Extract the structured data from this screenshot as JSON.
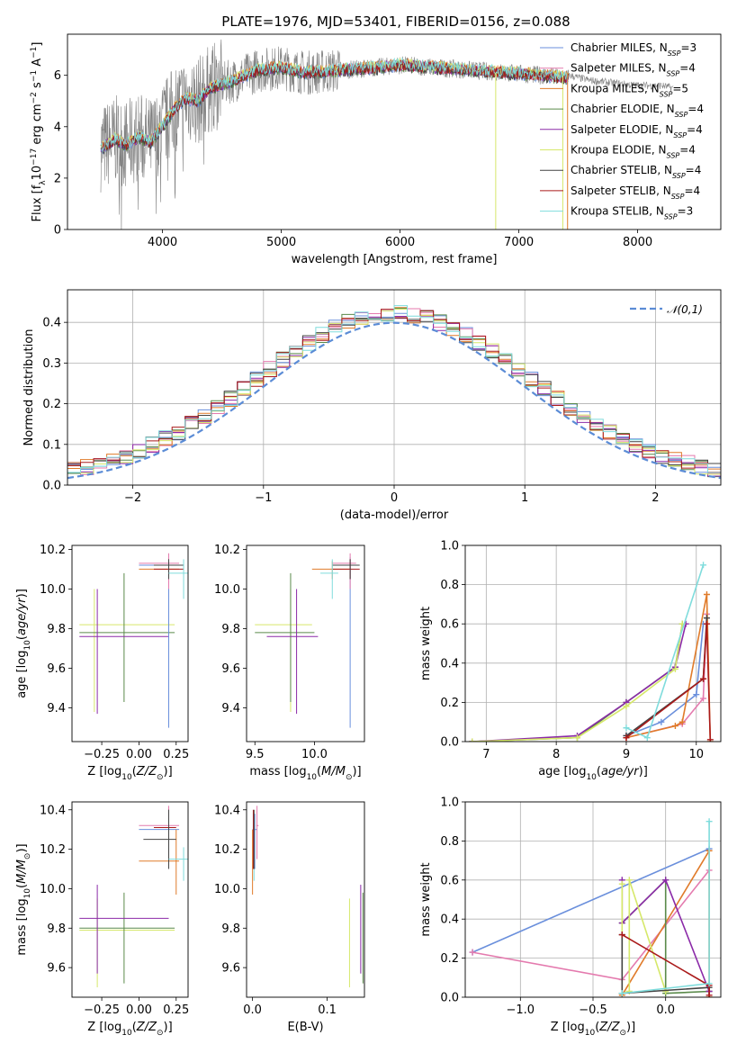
{
  "figure": {
    "title": "PLATE=1976, MJD=53401, FIBERID=0156, z=0.088"
  },
  "colors": {
    "Chabrier MILES": "#6a8fdc",
    "Salpeter MILES": "#e47aae",
    "Kroupa MILES": "#e07b2a",
    "Chabrier ELODIE": "#5a8a4a",
    "Salpeter ELODIE": "#8b2aa8",
    "Kroupa ELODIE": "#d6e86a",
    "Chabrier STELIB": "#444444",
    "Salpeter STELIB": "#aa1a1a",
    "Kroupa STELIB": "#7fdcdc",
    "data": "#808080",
    "gaussian": "#5b8cd6"
  },
  "chart_data": [
    {
      "id": "spectrum",
      "type": "line",
      "xlabel": "wavelength [Angstrom, rest frame]",
      "ylabel": "Flux [f_λ10^-17 erg cm^-2 s^-1 A^-1]",
      "xlim": [
        3200,
        8700
      ],
      "ylim": [
        0,
        7.6
      ],
      "xticks": [
        4000,
        5000,
        6000,
        7000,
        8000
      ],
      "yticks": [
        0,
        2,
        4,
        6
      ],
      "grid": false,
      "legend_position": "right",
      "legend": [
        {
          "model": "Chabrier MILES",
          "label": "Chabrier MILES, N",
          "sub": "SSP",
          "value": "=3"
        },
        {
          "model": "Salpeter MILES",
          "label": "Salpeter MILES, N",
          "sub": "SSP",
          "value": "=4"
        },
        {
          "model": "Kroupa MILES",
          "label": "Kroupa MILES, N",
          "sub": "SSP",
          "value": "=5"
        },
        {
          "model": "Chabrier ELODIE",
          "label": "Chabrier ELODIE, N",
          "sub": "SSP",
          "value": "=4"
        },
        {
          "model": "Salpeter ELODIE",
          "label": "Salpeter ELODIE, N",
          "sub": "SSP",
          "value": "=4"
        },
        {
          "model": "Kroupa ELODIE",
          "label": "Kroupa ELODIE, N",
          "sub": "SSP",
          "value": "=4"
        },
        {
          "model": "Chabrier STELIB",
          "label": "Chabrier STELIB, N",
          "sub": "SSP",
          "value": "=4"
        },
        {
          "model": "Salpeter STELIB",
          "label": "Salpeter STELIB, N",
          "sub": "SSP",
          "value": "=4"
        },
        {
          "model": "Kroupa STELIB",
          "label": "Kroupa STELIB, N",
          "sub": "SSP",
          "value": "=3"
        }
      ],
      "continuum": {
        "x": [
          3500,
          3600,
          3700,
          3800,
          3900,
          4000,
          4100,
          4200,
          4300,
          4400,
          4600,
          4800,
          5000,
          5200,
          5500,
          5800,
          6000,
          6300,
          6600,
          6900,
          7200,
          7400
        ],
        "y": [
          3.2,
          3.5,
          3.3,
          3.6,
          3.4,
          4.0,
          4.7,
          5.1,
          5.0,
          5.5,
          5.8,
          6.2,
          6.3,
          6.1,
          6.2,
          6.3,
          6.4,
          6.3,
          6.2,
          6.1,
          6.0,
          5.9
        ]
      },
      "data_tail": {
        "x": [
          7420,
          7600,
          7800,
          8000,
          8200,
          8300
        ],
        "y": [
          6.0,
          5.8,
          5.7,
          5.6,
          5.6,
          5.5
        ]
      },
      "dips": [
        {
          "model": "Kroupa ELODIE",
          "x": 6805
        },
        {
          "model": "Kroupa MILES",
          "x": 7410
        },
        {
          "model": "Kroupa ELODIE",
          "x": 7370
        }
      ]
    },
    {
      "id": "residuals",
      "type": "step-histogram",
      "xlabel": "(data-model)/error",
      "ylabel": "Normed distribution",
      "xlim": [
        -2.5,
        2.5
      ],
      "ylim": [
        0,
        0.48
      ],
      "xticks": [
        -2,
        -1,
        0,
        1,
        2
      ],
      "yticks": [
        0.0,
        0.1,
        0.2,
        0.3,
        0.4
      ],
      "grid": true,
      "legend_position": "top-right",
      "gaussian_label": "N(0,1)",
      "bins": 50
    },
    {
      "id": "age-vs-Z",
      "type": "errorbar",
      "xlabel": "Z [log10(Z/Z☉)]",
      "ylabel": "age  [log10(age/yr)]",
      "xlim": [
        -0.45,
        0.33
      ],
      "ylim": [
        9.23,
        10.22
      ],
      "xticks": [
        -0.25,
        0.0,
        0.25
      ],
      "yticks": [
        9.4,
        9.6,
        9.8,
        10.0,
        10.2
      ],
      "grid": false,
      "points": [
        {
          "model": "Kroupa ELODIE",
          "x": -0.3,
          "y": 9.82,
          "xlo": -0.4,
          "xhi": 0.24,
          "ylo": 9.38,
          "yhi": 10.0
        },
        {
          "model": "Chabrier ELODIE",
          "x": -0.1,
          "y": 9.78,
          "xlo": -0.4,
          "xhi": 0.24,
          "ylo": 9.43,
          "yhi": 10.08
        },
        {
          "model": "Salpeter ELODIE",
          "x": -0.28,
          "y": 9.76,
          "xlo": -0.4,
          "xhi": 0.2,
          "ylo": 9.37,
          "yhi": 10.0
        },
        {
          "model": "Chabrier MILES",
          "x": 0.2,
          "y": 10.12,
          "xlo": 0.0,
          "xhi": 0.27,
          "ylo": 9.3,
          "yhi": 10.16
        },
        {
          "model": "Salpeter MILES",
          "x": 0.2,
          "y": 10.13,
          "xlo": 0.0,
          "xhi": 0.27,
          "ylo": 10.0,
          "yhi": 10.18
        },
        {
          "model": "Kroupa MILES",
          "x": 0.2,
          "y": 10.1,
          "xlo": 0.0,
          "xhi": 0.27,
          "ylo": 10.05,
          "yhi": 10.14
        },
        {
          "model": "Salpeter STELIB",
          "x": 0.2,
          "y": 10.1,
          "xlo": 0.1,
          "xhi": 0.3,
          "ylo": 10.05,
          "yhi": 10.15
        },
        {
          "model": "Chabrier STELIB",
          "x": 0.2,
          "y": 10.12,
          "xlo": 0.1,
          "xhi": 0.3,
          "ylo": 10.05,
          "yhi": 10.15
        },
        {
          "model": "Kroupa STELIB",
          "x": 0.3,
          "y": 10.08,
          "xlo": 0.2,
          "xhi": 0.33,
          "ylo": 9.95,
          "yhi": 10.15
        }
      ]
    },
    {
      "id": "age-vs-mass",
      "type": "errorbar",
      "xlabel": "mass [log10(M/M☉)]",
      "ylabel": "",
      "xlim": [
        9.43,
        10.42
      ],
      "ylim": [
        9.23,
        10.22
      ],
      "xticks": [
        9.5,
        10.0
      ],
      "yticks": [
        9.4,
        9.6,
        9.8,
        10.0,
        10.2
      ],
      "grid": false,
      "points": [
        {
          "model": "Kroupa ELODIE",
          "x": 9.8,
          "y": 9.82,
          "xlo": 9.5,
          "xhi": 9.98,
          "ylo": 9.38,
          "yhi": 10.0
        },
        {
          "model": "Chabrier ELODIE",
          "x": 9.8,
          "y": 9.78,
          "xlo": 9.5,
          "xhi": 10.0,
          "ylo": 9.43,
          "yhi": 10.08
        },
        {
          "model": "Salpeter ELODIE",
          "x": 9.85,
          "y": 9.76,
          "xlo": 9.6,
          "xhi": 10.03,
          "ylo": 9.37,
          "yhi": 10.0
        },
        {
          "model": "Chabrier MILES",
          "x": 10.3,
          "y": 10.12,
          "xlo": 10.15,
          "xhi": 10.35,
          "ylo": 9.3,
          "yhi": 10.16
        },
        {
          "model": "Salpeter MILES",
          "x": 10.3,
          "y": 10.13,
          "xlo": 10.15,
          "xhi": 10.35,
          "ylo": 10.0,
          "yhi": 10.18
        },
        {
          "model": "Kroupa MILES",
          "x": 10.15,
          "y": 10.1,
          "xlo": 9.98,
          "xhi": 10.3,
          "ylo": 10.05,
          "yhi": 10.14
        },
        {
          "model": "Salpeter STELIB",
          "x": 10.3,
          "y": 10.1,
          "xlo": 10.15,
          "xhi": 10.38,
          "ylo": 10.05,
          "yhi": 10.15
        },
        {
          "model": "Chabrier STELIB",
          "x": 10.3,
          "y": 10.12,
          "xlo": 10.15,
          "xhi": 10.38,
          "ylo": 10.05,
          "yhi": 10.15
        },
        {
          "model": "Kroupa STELIB",
          "x": 10.15,
          "y": 10.08,
          "xlo": 10.05,
          "xhi": 10.2,
          "ylo": 9.95,
          "yhi": 10.15
        }
      ]
    },
    {
      "id": "mass-weight-vs-age",
      "type": "line",
      "xlabel": "age  [log10(age/yr)]",
      "ylabel": "mass weight",
      "xlim": [
        6.7,
        10.35
      ],
      "ylim": [
        0,
        1.0
      ],
      "xticks": [
        7,
        8,
        9,
        10
      ],
      "yticks": [
        0.0,
        0.2,
        0.4,
        0.6,
        0.8,
        1.0
      ],
      "grid": true,
      "series": [
        {
          "model": "Chabrier MILES",
          "x": [
            9.0,
            9.5,
            10.0,
            10.1
          ],
          "y": [
            0.03,
            0.1,
            0.24,
            0.6
          ]
        },
        {
          "model": "Salpeter MILES",
          "x": [
            9.0,
            9.8,
            10.1,
            10.15
          ],
          "y": [
            0.02,
            0.09,
            0.22,
            0.65
          ]
        },
        {
          "model": "Kroupa MILES",
          "x": [
            9.0,
            9.7,
            9.8,
            10.15,
            10.2
          ],
          "y": [
            0.02,
            0.08,
            0.1,
            0.75,
            0.0
          ]
        },
        {
          "model": "Chabrier ELODIE",
          "x": [
            6.8,
            8.3,
            9.0,
            9.7,
            9.8
          ],
          "y": [
            0.0,
            0.02,
            0.2,
            0.38,
            0.6
          ]
        },
        {
          "model": "Salpeter ELODIE",
          "x": [
            6.8,
            8.3,
            9.0,
            9.7,
            9.85
          ],
          "y": [
            0.0,
            0.03,
            0.2,
            0.38,
            0.6
          ]
        },
        {
          "model": "Kroupa ELODIE",
          "x": [
            6.8,
            8.3,
            9.0,
            9.7,
            9.8
          ],
          "y": [
            0.0,
            0.02,
            0.18,
            0.37,
            0.6
          ]
        },
        {
          "model": "Chabrier STELIB",
          "x": [
            9.0,
            10.1,
            10.15
          ],
          "y": [
            0.03,
            0.32,
            0.63
          ]
        },
        {
          "model": "Salpeter STELIB",
          "x": [
            9.0,
            10.1,
            10.15,
            10.2
          ],
          "y": [
            0.02,
            0.32,
            0.6,
            0.01
          ]
        },
        {
          "model": "Kroupa STELIB",
          "x": [
            9.0,
            9.3,
            10.1
          ],
          "y": [
            0.07,
            0.02,
            0.9
          ]
        }
      ]
    },
    {
      "id": "mass-vs-Z",
      "type": "errorbar",
      "xlabel": "Z [log10(Z/Z☉)]",
      "ylabel": "mass [log10(M/M☉)]",
      "xlim": [
        -0.45,
        0.33
      ],
      "ylim": [
        9.45,
        10.44
      ],
      "xticks": [
        -0.25,
        0.0,
        0.25
      ],
      "yticks": [
        9.6,
        9.8,
        10.0,
        10.2,
        10.4
      ],
      "grid": false,
      "points": [
        {
          "model": "Kroupa ELODIE",
          "x": -0.28,
          "y": 9.79,
          "xlo": -0.4,
          "xhi": 0.24,
          "ylo": 9.5,
          "yhi": 9.95
        },
        {
          "model": "Chabrier ELODIE",
          "x": -0.1,
          "y": 9.8,
          "xlo": -0.4,
          "xhi": 0.24,
          "ylo": 9.52,
          "yhi": 9.98
        },
        {
          "model": "Salpeter ELODIE",
          "x": -0.28,
          "y": 9.85,
          "xlo": -0.4,
          "xhi": 0.2,
          "ylo": 9.57,
          "yhi": 10.02
        },
        {
          "model": "Chabrier MILES",
          "x": 0.2,
          "y": 10.3,
          "xlo": 0.0,
          "xhi": 0.27,
          "ylo": 10.1,
          "yhi": 10.38
        },
        {
          "model": "Salpeter MILES",
          "x": 0.2,
          "y": 10.32,
          "xlo": 0.0,
          "xhi": 0.27,
          "ylo": 10.15,
          "yhi": 10.42
        },
        {
          "model": "Kroupa MILES",
          "x": 0.25,
          "y": 10.14,
          "xlo": 0.0,
          "xhi": 0.27,
          "ylo": 9.97,
          "yhi": 10.3
        },
        {
          "model": "Salpeter STELIB",
          "x": 0.2,
          "y": 10.31,
          "xlo": 0.1,
          "xhi": 0.25,
          "ylo": 10.1,
          "yhi": 10.4
        },
        {
          "model": "Chabrier STELIB",
          "x": 0.2,
          "y": 10.25,
          "xlo": 0.03,
          "xhi": 0.25,
          "ylo": 10.1,
          "yhi": 10.4
        },
        {
          "model": "Kroupa STELIB",
          "x": 0.3,
          "y": 10.15,
          "xlo": 0.2,
          "xhi": 0.33,
          "ylo": 10.04,
          "yhi": 10.21
        }
      ]
    },
    {
      "id": "mass-vs-EBV",
      "type": "errorbar",
      "xlabel": "E(B-V)",
      "ylabel": "",
      "xlim": [
        -0.008,
        0.15
      ],
      "ylim": [
        9.45,
        10.44
      ],
      "xticks": [
        0.0,
        0.1
      ],
      "yticks": [
        9.6,
        9.8,
        10.0,
        10.2,
        10.4
      ],
      "grid": false,
      "points": [
        {
          "model": "Kroupa MILES",
          "x": 0.0,
          "y": 10.14,
          "xlo": 0.0,
          "xhi": 0.0,
          "ylo": 9.97,
          "yhi": 10.3
        },
        {
          "model": "Chabrier MILES",
          "x": 0.003,
          "y": 10.3,
          "xlo": 0.0,
          "xhi": 0.006,
          "ylo": 10.1,
          "yhi": 10.38
        },
        {
          "model": "Salpeter MILES",
          "x": 0.006,
          "y": 10.32,
          "xlo": 0.005,
          "xhi": 0.008,
          "ylo": 10.15,
          "yhi": 10.42
        },
        {
          "model": "Kroupa STELIB",
          "x": 0.002,
          "y": 10.15,
          "xlo": 0.002,
          "xhi": 0.002,
          "ylo": 10.04,
          "yhi": 10.21
        },
        {
          "model": "Salpeter STELIB",
          "x": 0.001,
          "y": 10.3,
          "xlo": 0.001,
          "xhi": 0.001,
          "ylo": 10.1,
          "yhi": 10.4
        },
        {
          "model": "Chabrier STELIB",
          "x": 0.002,
          "y": 10.25,
          "xlo": 0.002,
          "xhi": 0.002,
          "ylo": 10.1,
          "yhi": 10.4
        },
        {
          "model": "Kroupa ELODIE",
          "x": 0.13,
          "y": 9.79,
          "xlo": 0.13,
          "xhi": 0.13,
          "ylo": 9.5,
          "yhi": 9.95
        },
        {
          "model": "Salpeter ELODIE",
          "x": 0.145,
          "y": 9.85,
          "xlo": 0.145,
          "xhi": 0.145,
          "ylo": 9.57,
          "yhi": 10.02
        },
        {
          "model": "Chabrier ELODIE",
          "x": 0.148,
          "y": 9.8,
          "xlo": 0.148,
          "xhi": 0.148,
          "ylo": 9.52,
          "yhi": 9.98
        }
      ]
    },
    {
      "id": "mass-weight-vs-Z",
      "type": "line",
      "xlabel": "Z [log10(Z/Z☉)]",
      "ylabel": "mass weight",
      "xlim": [
        -1.38,
        0.38
      ],
      "ylim": [
        0,
        1.0
      ],
      "xticks": [
        -1.0,
        -0.5,
        0.0
      ],
      "yticks": [
        0.0,
        0.2,
        0.4,
        0.6,
        0.8,
        1.0
      ],
      "grid": true,
      "series": [
        {
          "model": "Chabrier MILES",
          "x": [
            -1.33,
            0.3
          ],
          "y": [
            0.23,
            0.76
          ]
        },
        {
          "model": "Salpeter MILES",
          "x": [
            -1.33,
            -0.3,
            0.3
          ],
          "y": [
            0.23,
            0.09,
            0.65
          ]
        },
        {
          "model": "Kroupa MILES",
          "x": [
            -0.3,
            0.3,
            0.3
          ],
          "y": [
            0.01,
            0.75,
            0.0
          ]
        },
        {
          "model": "Chabrier ELODIE",
          "x": [
            -0.3,
            0.0,
            0.0,
            0.3
          ],
          "y": [
            0.38,
            0.6,
            0.02,
            0.03
          ]
        },
        {
          "model": "Salpeter ELODIE",
          "x": [
            -0.3,
            -0.3,
            0.0,
            0.3
          ],
          "y": [
            0.6,
            0.38,
            0.6,
            0.03
          ]
        },
        {
          "model": "Kroupa ELODIE",
          "x": [
            -0.3,
            -0.3,
            -0.25,
            -0.25,
            0.0
          ],
          "y": [
            0.58,
            0.02,
            0.03,
            0.6,
            0.03
          ]
        },
        {
          "model": "Chabrier STELIB",
          "x": [
            -0.3,
            -0.3,
            0.3
          ],
          "y": [
            0.32,
            0.02,
            0.05
          ]
        },
        {
          "model": "Salpeter STELIB",
          "x": [
            -0.3,
            0.3,
            0.3
          ],
          "y": [
            0.32,
            0.06,
            0.01
          ]
        },
        {
          "model": "Kroupa STELIB",
          "x": [
            -0.3,
            0.3,
            0.3
          ],
          "y": [
            0.02,
            0.07,
            0.9
          ]
        }
      ]
    }
  ]
}
